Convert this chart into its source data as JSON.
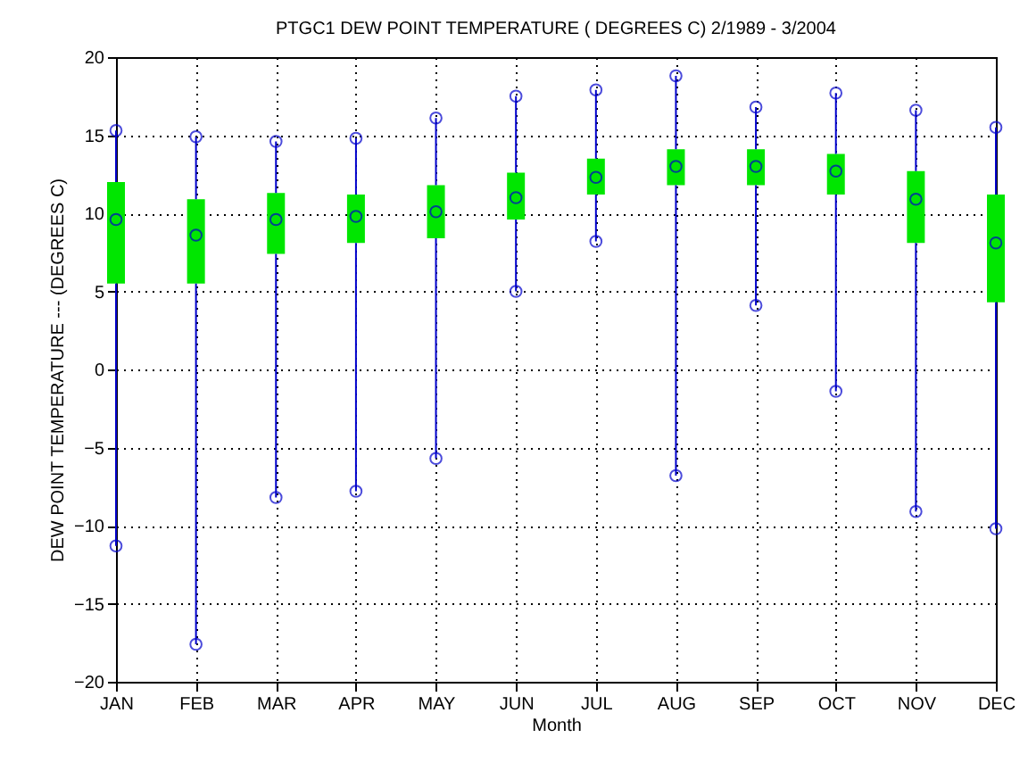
{
  "chart_data": {
    "type": "box",
    "title": "PTGC1  DEW POINT TEMPERATURE ( DEGREES C) 2/1989 - 3/2004",
    "xlabel": "Month",
    "ylabel": "DEW POINT TEMPERATURE --- (DEGREES C)",
    "categories": [
      "JAN",
      "FEB",
      "MAR",
      "APR",
      "MAY",
      "JUN",
      "JUL",
      "AUG",
      "SEP",
      "OCT",
      "NOV",
      "DEC"
    ],
    "series": [
      {
        "color": "#00e600",
        "boxes": [
          {
            "low": -11.3,
            "q1": 5.5,
            "median": 9.6,
            "q3": 12,
            "high": 15.3
          },
          {
            "low": -17.6,
            "q1": 5.5,
            "median": 8.6,
            "q3": 10.9,
            "high": 14.9
          },
          {
            "low": -8.2,
            "q1": 7.4,
            "median": 9.6,
            "q3": 11.3,
            "high": 14.6
          },
          {
            "low": -7.8,
            "q1": 8.1,
            "median": 9.8,
            "q3": 11.2,
            "high": 14.8
          },
          {
            "low": -5.7,
            "q1": 8.4,
            "median": 10.1,
            "q3": 11.8,
            "high": 16.1
          },
          {
            "low": 5,
            "q1": 9.6,
            "median": 11,
            "q3": 12.6,
            "high": 17.5
          },
          {
            "low": 8.2,
            "q1": 11.2,
            "median": 12.3,
            "q3": 13.5,
            "high": 17.9
          },
          {
            "low": -6.8,
            "q1": 11.8,
            "median": 13,
            "q3": 14.1,
            "high": 18.8
          },
          {
            "low": 4.1,
            "q1": 11.8,
            "median": 13,
            "q3": 14.1,
            "high": 16.8
          },
          {
            "low": -1.4,
            "q1": 11.2,
            "median": 12.7,
            "q3": 13.8,
            "high": 17.7
          },
          {
            "low": -9.1,
            "q1": 8.1,
            "median": 10.9,
            "q3": 12.7,
            "high": 16.6
          },
          {
            "low": -10.2,
            "q1": 4.3,
            "median": 8.1,
            "q3": 11.2,
            "high": 15.5
          }
        ]
      },
      {
        "type": "scatter",
        "color": "#0000cc",
        "x": [
          "JAN",
          "JAN",
          "FEB",
          "FEB",
          "MAR",
          "MAR",
          "APR",
          "APR",
          "MAY",
          "MAY",
          "JUN",
          "JUN",
          "JUL",
          "JUL",
          "AUG",
          "AUG",
          "SEP",
          "SEP",
          "OCT",
          "OCT",
          "NOV",
          "NOV",
          "DEC",
          "DEC"
        ],
        "values": [
          -11.3,
          15.3,
          -17.6,
          14.9,
          -8.2,
          14.6,
          -7.8,
          14.8,
          -5.7,
          16.1,
          5,
          17.5,
          8.2,
          17.9,
          -6.8,
          18.8,
          4.1,
          16.8,
          -1.4,
          17.7,
          -9.1,
          16.6,
          -10.2,
          15.5
        ]
      }
    ],
    "ylim": [
      -20,
      20
    ],
    "yticks": [
      -20,
      -15,
      -10,
      -5,
      0,
      5,
      10,
      15,
      20
    ],
    "grid": true,
    "marker": "circle"
  }
}
